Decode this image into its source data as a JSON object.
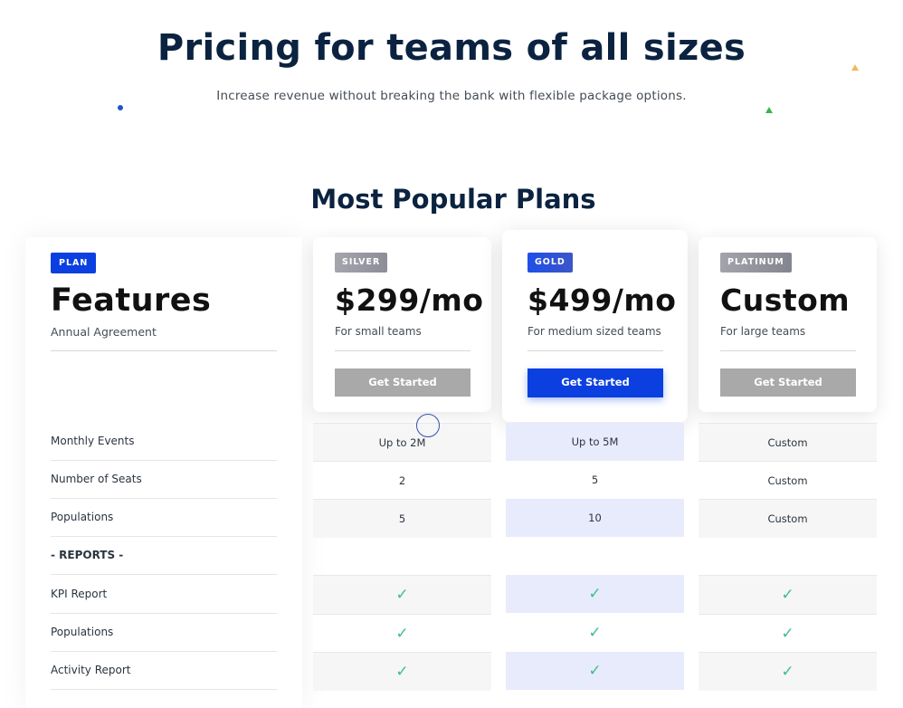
{
  "hero": {
    "title": "Pricing for teams of all sizes",
    "subtitle": "Increase revenue without breaking the bank with flexible package options."
  },
  "section_title": "Most Popular Plans",
  "features": {
    "badge": "PLAN",
    "heading": "Features",
    "subheading": "Annual Agreement"
  },
  "plans": [
    {
      "badge": "SILVER",
      "price": "$299/mo",
      "desc": "For small teams",
      "button": "Get Started"
    },
    {
      "badge": "GOLD",
      "price": "$499/mo",
      "desc": "For medium sized teams",
      "button": "Get Started"
    },
    {
      "badge": "PLATINUM",
      "price": "Custom",
      "desc": "For large teams",
      "button": "Get Started"
    }
  ],
  "rows": [
    {
      "label": "Monthly Events",
      "values": [
        "Up to 2M",
        "Up to 5M",
        "Custom"
      ]
    },
    {
      "label": "Number of Seats",
      "values": [
        "2",
        "5",
        "Custom"
      ]
    },
    {
      "label": "Populations",
      "values": [
        "5",
        "10",
        "Custom"
      ]
    },
    {
      "label": "- REPORTS -",
      "values": [
        "",
        "",
        ""
      ]
    },
    {
      "label": "KPI Report",
      "values": [
        "✓",
        "✓",
        "✓"
      ]
    },
    {
      "label": "Populations",
      "values": [
        "✓",
        "✓",
        "✓"
      ]
    },
    {
      "label": "Activity Report",
      "values": [
        "✓",
        "✓",
        "✓"
      ]
    }
  ],
  "colors": {
    "accent": "#0b3fe0",
    "check": "#3cbf8a",
    "gold_column": "#e8ebfc"
  }
}
